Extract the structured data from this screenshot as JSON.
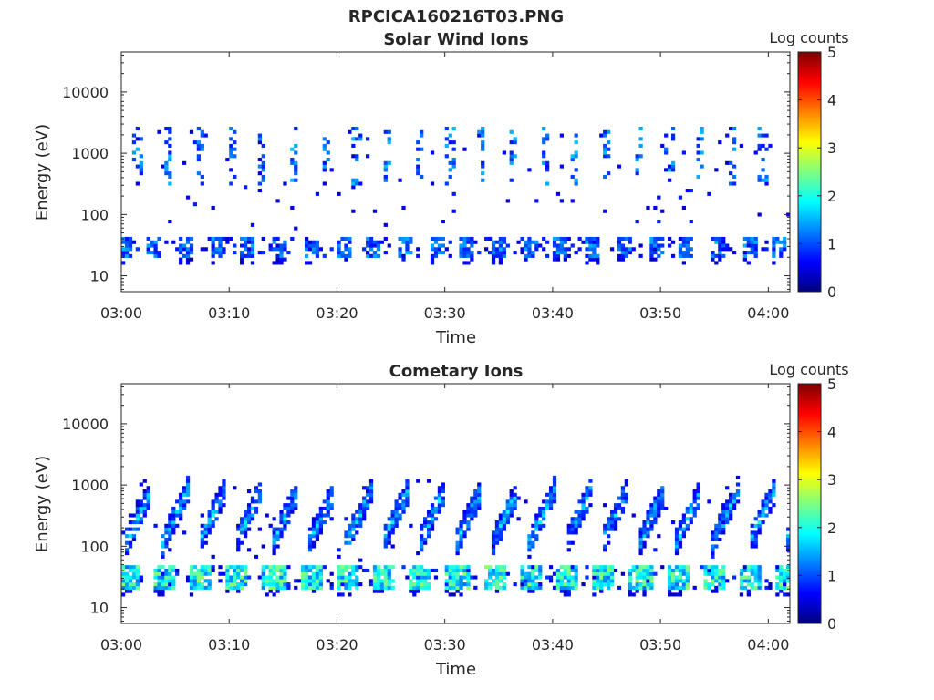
{
  "figure": {
    "title": "RPCICA160216T03.PNG"
  },
  "chart_data": [
    {
      "type": "heatmap",
      "title": "Solar Wind Ions",
      "xlabel": "Time",
      "ylabel": "Energy (eV)",
      "x_range": [
        "03:00",
        "04:02"
      ],
      "x_ticks": [
        "03:00",
        "03:10",
        "03:20",
        "03:30",
        "03:40",
        "03:50",
        "04:00"
      ],
      "y_scale": "log",
      "y_range": [
        5.5,
        45000
      ],
      "y_ticks": [
        "10",
        "100",
        "1000",
        "10000"
      ],
      "colorbar": {
        "label": "Log counts",
        "range": [
          0,
          5
        ],
        "ticks": [
          "0",
          "1",
          "2",
          "3",
          "4",
          "5"
        ],
        "colormap": "jet"
      },
      "bands": [
        {
          "feature": "low-energy band",
          "energy_range": [
            18,
            40
          ],
          "peak_log_counts": 1.5
        },
        {
          "feature": "high-energy bursts",
          "energy_range": [
            300,
            2500
          ],
          "peak_log_counts": 1.6
        }
      ],
      "seed": 7
    },
    {
      "type": "heatmap",
      "title": "Cometary Ions",
      "xlabel": "Time",
      "ylabel": "Energy (eV)",
      "x_range": [
        "03:00",
        "04:02"
      ],
      "x_ticks": [
        "03:00",
        "03:10",
        "03:20",
        "03:30",
        "03:40",
        "03:50",
        "04:00"
      ],
      "y_scale": "log",
      "y_range": [
        5.5,
        45000
      ],
      "y_ticks": [
        "10",
        "100",
        "1000",
        "10000"
      ],
      "colorbar": {
        "label": "Log counts",
        "range": [
          0,
          5
        ],
        "ticks": [
          "0",
          "1",
          "2",
          "3",
          "4",
          "5"
        ],
        "colormap": "jet"
      },
      "bands": [
        {
          "feature": "low-energy band",
          "energy_range": [
            18,
            45
          ],
          "peak_log_counts": 2.6
        },
        {
          "feature": "periodic dispersive arcs",
          "energy_range": [
            50,
            900
          ],
          "period_minutes": 3.4,
          "peak_log_counts": 2.0
        }
      ],
      "seed": 13
    }
  ]
}
